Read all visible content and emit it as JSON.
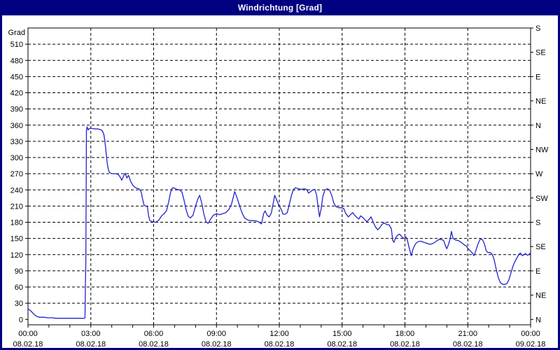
{
  "window": {
    "title": "Windrichtung [Grad]"
  },
  "colors": {
    "frame": "#000080",
    "titlebar_bg": "#000080",
    "title_text": "#ffffff",
    "plot_bg": "#ffffff",
    "grid": "#000000",
    "axis": "#000000",
    "label": "#000000",
    "line": "#2222cc"
  },
  "chart_data": {
    "type": "line",
    "title": "Windrichtung [Grad]",
    "ylabel": "Grad",
    "unit_label": "Grad",
    "ylim": [
      -10,
      540
    ],
    "xlim_hours": [
      0,
      24
    ],
    "grid": "dashed",
    "legend_position": "none",
    "y_left_tick_step": 30,
    "y_left_ticks": [
      0,
      30,
      60,
      90,
      120,
      150,
      180,
      210,
      240,
      270,
      300,
      330,
      360,
      390,
      420,
      450,
      480,
      510
    ],
    "y_grid_values": [
      30,
      60,
      90,
      120,
      150,
      180,
      210,
      240,
      270,
      300,
      330,
      360,
      390,
      420,
      450,
      480,
      510
    ],
    "y_right_ticks": [
      {
        "deg": 540,
        "label": "S"
      },
      {
        "deg": 495,
        "label": "SE"
      },
      {
        "deg": 450,
        "label": "E"
      },
      {
        "deg": 405,
        "label": "NE"
      },
      {
        "deg": 360,
        "label": "N"
      },
      {
        "deg": 315,
        "label": "NW"
      },
      {
        "deg": 270,
        "label": "W"
      },
      {
        "deg": 225,
        "label": "SW"
      },
      {
        "deg": 180,
        "label": "S"
      },
      {
        "deg": 135,
        "label": "SE"
      },
      {
        "deg": 90,
        "label": "E"
      },
      {
        "deg": 45,
        "label": "NE"
      },
      {
        "deg": 0,
        "label": "N"
      }
    ],
    "x_minor_tick_hours": 1,
    "x_grid_hours": [
      3,
      6,
      9,
      12,
      15,
      18,
      21
    ],
    "x_ticks": [
      {
        "hour": 0,
        "time": "00:00",
        "date": "08.02.18"
      },
      {
        "hour": 3,
        "time": "03:00",
        "date": "08.02.18"
      },
      {
        "hour": 6,
        "time": "06:00",
        "date": "08.02.18"
      },
      {
        "hour": 9,
        "time": "09:00",
        "date": "08.02.18"
      },
      {
        "hour": 12,
        "time": "12:00",
        "date": "08.02.18"
      },
      {
        "hour": 15,
        "time": "15:00",
        "date": "08.02.18"
      },
      {
        "hour": 18,
        "time": "18:00",
        "date": "08.02.18"
      },
      {
        "hour": 21,
        "time": "21:00",
        "date": "08.02.18"
      },
      {
        "hour": 24,
        "time": "00:00",
        "date": "09.02.18"
      }
    ],
    "series": [
      {
        "name": "Windrichtung",
        "color": "#2222cc",
        "points": [
          [
            0,
            20
          ],
          [
            0.13,
            16
          ],
          [
            0.27,
            10
          ],
          [
            0.4,
            6
          ],
          [
            0.55,
            4
          ],
          [
            0.75,
            4
          ],
          [
            0.95,
            3
          ],
          [
            1.15,
            3
          ],
          [
            1.35,
            2
          ],
          [
            1.7,
            2
          ],
          [
            2.1,
            2
          ],
          [
            2.5,
            2
          ],
          [
            2.68,
            2
          ],
          [
            2.72,
            3
          ],
          [
            2.74,
            60
          ],
          [
            2.76,
            105
          ],
          [
            2.79,
            350
          ],
          [
            2.82,
            357
          ],
          [
            2.87,
            351
          ],
          [
            2.93,
            354
          ],
          [
            3.05,
            354
          ],
          [
            3.2,
            353
          ],
          [
            3.35,
            353
          ],
          [
            3.5,
            351
          ],
          [
            3.57,
            348
          ],
          [
            3.62,
            343
          ],
          [
            3.67,
            331
          ],
          [
            3.72,
            313
          ],
          [
            3.78,
            290
          ],
          [
            3.84,
            277
          ],
          [
            3.9,
            272
          ],
          [
            4.0,
            270
          ],
          [
            4.15,
            270
          ],
          [
            4.3,
            269
          ],
          [
            4.4,
            264
          ],
          [
            4.48,
            258
          ],
          [
            4.56,
            265
          ],
          [
            4.64,
            271
          ],
          [
            4.72,
            262
          ],
          [
            4.8,
            267
          ],
          [
            4.9,
            256
          ],
          [
            5.0,
            249
          ],
          [
            5.1,
            245
          ],
          [
            5.2,
            243
          ],
          [
            5.3,
            242
          ],
          [
            5.4,
            237
          ],
          [
            5.47,
            224
          ],
          [
            5.54,
            212
          ],
          [
            5.62,
            210
          ],
          [
            5.7,
            209
          ],
          [
            5.76,
            192
          ],
          [
            5.82,
            183
          ],
          [
            5.95,
            181
          ],
          [
            6.1,
            180
          ],
          [
            6.25,
            184
          ],
          [
            6.38,
            192
          ],
          [
            6.5,
            196
          ],
          [
            6.62,
            202
          ],
          [
            6.72,
            218
          ],
          [
            6.8,
            234
          ],
          [
            6.88,
            243
          ],
          [
            6.95,
            244
          ],
          [
            7.1,
            241
          ],
          [
            7.25,
            240
          ],
          [
            7.35,
            236
          ],
          [
            7.45,
            221
          ],
          [
            7.55,
            203
          ],
          [
            7.65,
            191
          ],
          [
            7.75,
            188
          ],
          [
            7.88,
            193
          ],
          [
            8.0,
            210
          ],
          [
            8.12,
            224
          ],
          [
            8.2,
            230
          ],
          [
            8.3,
            215
          ],
          [
            8.4,
            195
          ],
          [
            8.5,
            181
          ],
          [
            8.6,
            178
          ],
          [
            8.72,
            186
          ],
          [
            8.85,
            193
          ],
          [
            9.0,
            196
          ],
          [
            9.15,
            194
          ],
          [
            9.3,
            196
          ],
          [
            9.45,
            198
          ],
          [
            9.6,
            204
          ],
          [
            9.72,
            214
          ],
          [
            9.8,
            226
          ],
          [
            9.87,
            237
          ],
          [
            9.95,
            229
          ],
          [
            10.05,
            217
          ],
          [
            10.15,
            205
          ],
          [
            10.25,
            195
          ],
          [
            10.35,
            188
          ],
          [
            10.5,
            184
          ],
          [
            10.65,
            183
          ],
          [
            10.8,
            183
          ],
          [
            10.95,
            182
          ],
          [
            11.08,
            179
          ],
          [
            11.15,
            177
          ],
          [
            11.25,
            196
          ],
          [
            11.32,
            201
          ],
          [
            11.42,
            193
          ],
          [
            11.52,
            190
          ],
          [
            11.62,
            197
          ],
          [
            11.7,
            213
          ],
          [
            11.78,
            230
          ],
          [
            11.88,
            221
          ],
          [
            11.98,
            211
          ],
          [
            12.08,
            205
          ],
          [
            12.18,
            195
          ],
          [
            12.28,
            195
          ],
          [
            12.38,
            198
          ],
          [
            12.48,
            214
          ],
          [
            12.58,
            230
          ],
          [
            12.68,
            241
          ],
          [
            12.78,
            244
          ],
          [
            12.92,
            242
          ],
          [
            13.05,
            241
          ],
          [
            13.18,
            242
          ],
          [
            13.3,
            241
          ],
          [
            13.4,
            234
          ],
          [
            13.5,
            237
          ],
          [
            13.6,
            240
          ],
          [
            13.7,
            241
          ],
          [
            13.78,
            230
          ],
          [
            13.85,
            210
          ],
          [
            13.92,
            190
          ],
          [
            14.0,
            205
          ],
          [
            14.08,
            228
          ],
          [
            14.18,
            240
          ],
          [
            14.3,
            242
          ],
          [
            14.4,
            240
          ],
          [
            14.5,
            230
          ],
          [
            14.6,
            216
          ],
          [
            14.7,
            209
          ],
          [
            14.82,
            207
          ],
          [
            14.95,
            207
          ],
          [
            15.07,
            206
          ],
          [
            15.18,
            196
          ],
          [
            15.3,
            190
          ],
          [
            15.4,
            194
          ],
          [
            15.5,
            198
          ],
          [
            15.6,
            193
          ],
          [
            15.7,
            189
          ],
          [
            15.8,
            186
          ],
          [
            15.88,
            192
          ],
          [
            15.98,
            189
          ],
          [
            16.08,
            185
          ],
          [
            16.18,
            181
          ],
          [
            16.28,
            185
          ],
          [
            16.38,
            190
          ],
          [
            16.48,
            181
          ],
          [
            16.58,
            172
          ],
          [
            16.7,
            166
          ],
          [
            16.8,
            170
          ],
          [
            16.9,
            176
          ],
          [
            17.0,
            179
          ],
          [
            17.12,
            176
          ],
          [
            17.25,
            175
          ],
          [
            17.35,
            168
          ],
          [
            17.42,
            146
          ],
          [
            17.48,
            143
          ],
          [
            17.55,
            151
          ],
          [
            17.65,
            156
          ],
          [
            17.75,
            158
          ],
          [
            17.85,
            153
          ],
          [
            17.95,
            150
          ],
          [
            18.05,
            153
          ],
          [
            18.12,
            146
          ],
          [
            18.2,
            133
          ],
          [
            18.3,
            118
          ],
          [
            18.4,
            132
          ],
          [
            18.5,
            140
          ],
          [
            18.62,
            144
          ],
          [
            18.75,
            145
          ],
          [
            18.9,
            143
          ],
          [
            19.05,
            141
          ],
          [
            19.2,
            139
          ],
          [
            19.35,
            141
          ],
          [
            19.5,
            145
          ],
          [
            19.62,
            148
          ],
          [
            19.75,
            148
          ],
          [
            19.85,
            146
          ],
          [
            19.93,
            137
          ],
          [
            20.0,
            131
          ],
          [
            20.08,
            139
          ],
          [
            20.15,
            148
          ],
          [
            20.22,
            163
          ],
          [
            20.3,
            150
          ],
          [
            20.42,
            147
          ],
          [
            20.55,
            146
          ],
          [
            20.68,
            143
          ],
          [
            20.8,
            139
          ],
          [
            20.92,
            136
          ],
          [
            21.02,
            131
          ],
          [
            21.12,
            127
          ],
          [
            21.22,
            123
          ],
          [
            21.3,
            118
          ],
          [
            21.4,
            129
          ],
          [
            21.5,
            141
          ],
          [
            21.6,
            149
          ],
          [
            21.7,
            148
          ],
          [
            21.8,
            139
          ],
          [
            21.88,
            127
          ],
          [
            21.96,
            124
          ],
          [
            22.06,
            124
          ],
          [
            22.16,
            121
          ],
          [
            22.26,
            111
          ],
          [
            22.36,
            93
          ],
          [
            22.46,
            77
          ],
          [
            22.56,
            68
          ],
          [
            22.66,
            65
          ],
          [
            22.76,
            65
          ],
          [
            22.86,
            66
          ],
          [
            22.96,
            73
          ],
          [
            23.06,
            86
          ],
          [
            23.16,
            99
          ],
          [
            23.26,
            108
          ],
          [
            23.36,
            115
          ],
          [
            23.45,
            121
          ],
          [
            23.52,
            123
          ],
          [
            23.6,
            118
          ],
          [
            23.68,
            120
          ],
          [
            23.76,
            122
          ],
          [
            23.84,
            119
          ],
          [
            23.92,
            120
          ],
          [
            24,
            124
          ]
        ]
      }
    ]
  }
}
